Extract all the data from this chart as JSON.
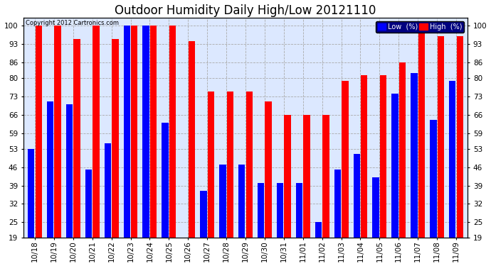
{
  "title": "Outdoor Humidity Daily High/Low 20121110",
  "copyright": "Copyright 2012 Cartronics.com",
  "categories": [
    "10/18",
    "10/19",
    "10/20",
    "10/21",
    "10/22",
    "10/23",
    "10/24",
    "10/25",
    "10/26",
    "10/27",
    "10/28",
    "10/29",
    "10/30",
    "10/31",
    "11/01",
    "11/02",
    "11/03",
    "11/04",
    "11/05",
    "11/06",
    "11/07",
    "11/08",
    "11/09"
  ],
  "high_values": [
    100,
    100,
    95,
    100,
    95,
    100,
    100,
    100,
    94,
    75,
    75,
    75,
    71,
    66,
    66,
    66,
    79,
    81,
    81,
    86,
    100,
    96,
    96
  ],
  "low_values": [
    53,
    71,
    70,
    45,
    55,
    100,
    100,
    63,
    19,
    37,
    47,
    47,
    40,
    40,
    40,
    25,
    45,
    51,
    42,
    74,
    82,
    64,
    79
  ],
  "high_color": "#ff0000",
  "low_color": "#0000ff",
  "bg_color": "#ffffff",
  "plot_bg_color": "#dce8ff",
  "grid_color": "#aaaaaa",
  "yticks": [
    19,
    25,
    32,
    39,
    46,
    53,
    59,
    66,
    73,
    80,
    86,
    93,
    100
  ],
  "ymin": 19,
  "ymax": 103,
  "title_fontsize": 12,
  "tick_fontsize": 7.5,
  "bar_width": 0.35,
  "bar_gap": 0.04
}
